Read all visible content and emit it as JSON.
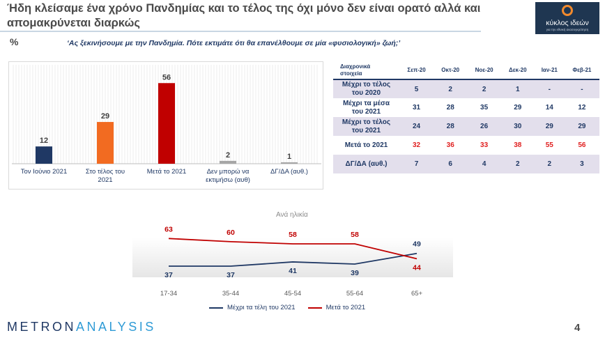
{
  "header": {
    "title": "Ήδη κλείσαμε ένα χρόνο Πανδημίας και το τέλος της όχι μόνο δεν είναι ορατό αλλά και απομακρύνεται διαρκώς",
    "logo_name": "κύκλος ιδεών",
    "logo_tag": "για την εθνική ανασυγκρότηση"
  },
  "question": {
    "symbol": "%",
    "text": "‘Ας ξεκινήσουμε με την Πανδημία. Πότε εκτιμάτε ότι θα επανέλθουμε σε μία «φυσιολογική» ζωή;’"
  },
  "chart_data": [
    {
      "type": "bar",
      "categories": [
        "Τον Ιούνιο 2021",
        "Στο τέλος του 2021",
        "Μετά το 2021",
        "Δεν μπορώ να εκτιμήσω (αυθ)",
        "ΔΓ/ΔΑ (αυθ.)"
      ],
      "category_lines": [
        [
          "Τον Ιούνιο 2021"
        ],
        [
          "Στο τέλος του",
          "2021"
        ],
        [
          "Μετά το 2021"
        ],
        [
          "Δεν μπορώ να",
          "εκτιμήσω  (αυθ)"
        ],
        [
          "ΔΓ/ΔΑ (αυθ.)"
        ]
      ],
      "values": [
        12,
        29,
        56,
        2,
        1
      ],
      "colors": [
        "#1f3864",
        "#f26b21",
        "#c00000",
        "#a6a6a6",
        "#a6a6a6"
      ],
      "ylim": [
        0,
        60
      ]
    },
    {
      "type": "table",
      "corner": [
        "Διαχρονικά",
        "στοιχεία"
      ],
      "columns": [
        "Σεπ-20",
        "Οκτ-20",
        "Νοε-20",
        "Δεκ-20",
        "Ιαν-21",
        "Φεβ-21"
      ],
      "rows": [
        {
          "label": [
            "Μέχρι το τέλος",
            "του 2020"
          ],
          "values": [
            "5",
            "2",
            "2",
            "1",
            "-",
            "-"
          ]
        },
        {
          "label": [
            "Μέχρι τα μέσα",
            "του 2021"
          ],
          "values": [
            "31",
            "28",
            "35",
            "29",
            "14",
            "12"
          ]
        },
        {
          "label": [
            "Μέχρι το τέλος",
            "του 2021"
          ],
          "values": [
            "24",
            "28",
            "26",
            "30",
            "29",
            "29"
          ]
        },
        {
          "label": [
            "Μετά το 2021"
          ],
          "values": [
            "32",
            "36",
            "33",
            "38",
            "55",
            "56"
          ]
        },
        {
          "label": [
            "ΔΓ/ΔΑ (αυθ.)"
          ],
          "values": [
            "7",
            "6",
            "4",
            "2",
            "2",
            "3"
          ]
        }
      ]
    },
    {
      "type": "line",
      "title": "Ανά ηλικία",
      "categories": [
        "17-34",
        "35-44",
        "45-54",
        "55-64",
        "65+"
      ],
      "series": [
        {
          "name": "Μέχρι τα τέλη του 2021",
          "values": [
            37,
            37,
            41,
            39,
            49
          ],
          "color": "#1f3864"
        },
        {
          "name": "Μετά το 2021",
          "values": [
            63,
            60,
            58,
            58,
            44
          ],
          "color": "#c00000"
        }
      ],
      "ylim": [
        20,
        75
      ]
    }
  ],
  "footer": {
    "brand_metron": "METRON",
    "brand_analysis": "ANALYSIS",
    "page": "4"
  }
}
